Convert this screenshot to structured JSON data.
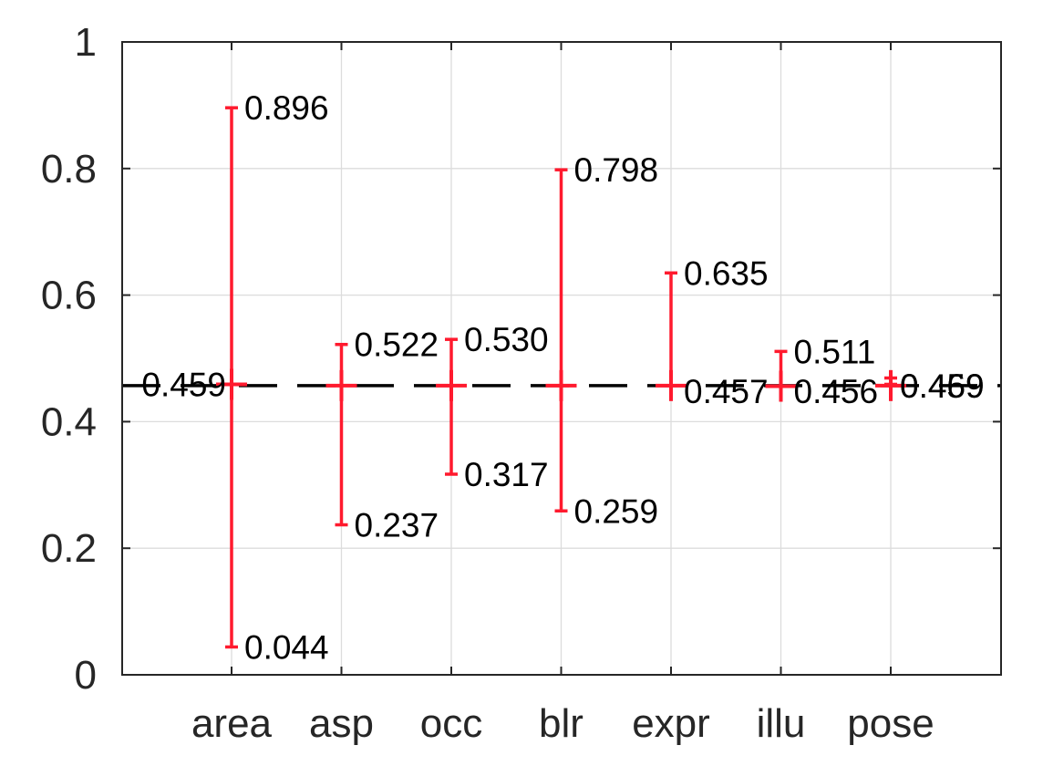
{
  "chart_data": {
    "type": "errorbar",
    "title": "",
    "xlabel": "",
    "ylabel": "",
    "categories": [
      "area",
      "asp",
      "occ",
      "blr",
      "expr",
      "illu",
      "pose"
    ],
    "ylim": [
      0,
      1
    ],
    "yticks": [
      "0",
      "0.2",
      "0.4",
      "0.6",
      "0.8",
      "1"
    ],
    "grid": true,
    "reference_line": 0.457,
    "series": [
      {
        "mean": [
          0.459,
          0.457,
          0.457,
          0.457,
          0.457,
          0.456,
          0.457
        ],
        "max": [
          0.896,
          0.522,
          0.53,
          0.798,
          0.635,
          0.511,
          0.469
        ],
        "min": [
          0.044,
          0.237,
          0.317,
          0.259,
          0.457,
          0.456,
          0.459
        ],
        "color": "#ff1a2e"
      }
    ],
    "labels": [
      {
        "category": "area",
        "texts": [
          "0.896",
          "0.459",
          "0.044"
        ]
      },
      {
        "category": "asp",
        "texts": [
          "0.522",
          "0.237"
        ]
      },
      {
        "category": "occ",
        "texts": [
          "0.530",
          "0.317"
        ]
      },
      {
        "category": "blr",
        "texts": [
          "0.798",
          "0.259"
        ]
      },
      {
        "category": "expr",
        "texts": [
          "0.635",
          "0.457"
        ]
      },
      {
        "category": "illu",
        "texts": [
          "0.511",
          "0.456"
        ]
      },
      {
        "category": "pose",
        "texts": [
          "0.469",
          "0.459"
        ]
      }
    ],
    "colors": {
      "errorbar": "#ff1a2e",
      "reference": "#000000",
      "grid": "#dcdcdc",
      "axis": "#262626"
    }
  }
}
